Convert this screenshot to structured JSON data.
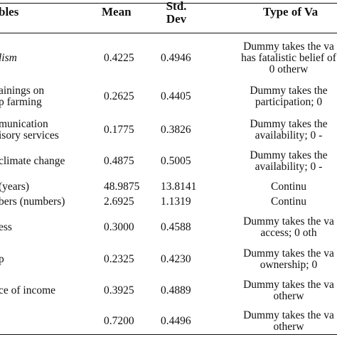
{
  "table": {
    "headers": {
      "variables": "bles",
      "mean": "Mean",
      "std_line1": "Std.",
      "std_line2": "Dev",
      "type": "Type of Va"
    },
    "rows": [
      {
        "var_lines": [
          "lism"
        ],
        "var_italic": true,
        "mean": "0.4225",
        "std": "0.4946",
        "type_lines": [
          "Dummy takes the va",
          "has fatalistic belief of",
          "0 otherw"
        ]
      },
      {
        "var_lines": [
          "ainings on",
          "p farming"
        ],
        "mean": "0.2625",
        "std": "0.4405",
        "type_lines": [
          "Dummy takes the",
          "participation; 0"
        ]
      },
      {
        "var_lines": [
          "munication",
          "isory services"
        ],
        "mean": "0.1775",
        "std": "0.3826",
        "type_lines": [
          "Dummy takes the",
          "availability; 0 -"
        ]
      },
      {
        "var_lines": [
          "climate change"
        ],
        "mean": "0.4875",
        "std": "0.5005",
        "type_lines": [
          "Dummy takes the",
          "availability; 0 -"
        ]
      },
      {
        "var_lines": [
          " (years)"
        ],
        "mean": "48.9875",
        "std": "13.8141",
        "type_lines": [
          "Continu"
        ]
      },
      {
        "var_lines": [
          "bers (numbers)"
        ],
        "mean": "2.6925",
        "std": "1.1319",
        "type_lines": [
          "Continu"
        ]
      },
      {
        "var_lines": [
          "ess"
        ],
        "mean": "0.3000",
        "std": "0.4588",
        "type_lines": [
          "Dummy takes the va",
          "access; 0 oth"
        ]
      },
      {
        "var_lines": [
          "p"
        ],
        "mean": "0.2325",
        "std": "0.4230",
        "type_lines": [
          "Dummy takes the va",
          "ownership; 0"
        ]
      },
      {
        "var_lines": [
          "ce of income"
        ],
        "mean": "0.3925",
        "std": "0.4889",
        "type_lines": [
          "Dummy takes the va",
          "otherw"
        ]
      },
      {
        "var_lines": [
          ""
        ],
        "mean": "0.7200",
        "std": "0.4496",
        "type_lines": [
          "Dummy takes the va",
          "otherw"
        ]
      }
    ]
  }
}
